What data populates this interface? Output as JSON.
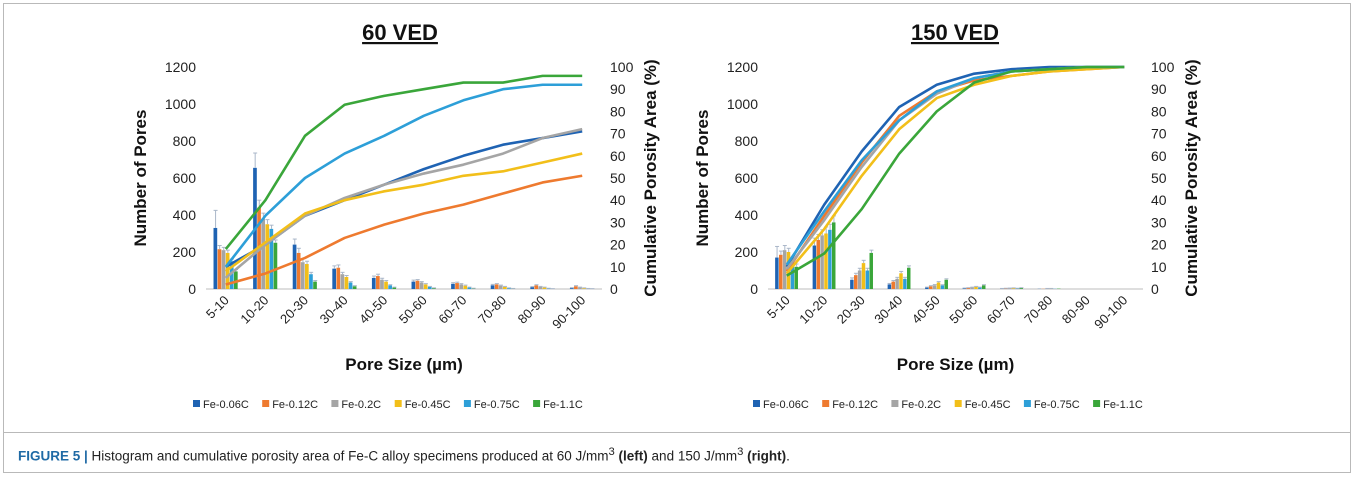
{
  "chart_data": [
    {
      "type": "bar",
      "title": "60 VED",
      "xlabel": "Pore Size (µm)",
      "ylabel": "Number of Pores",
      "y2label": "Cumulative Porosity Area (%)",
      "ylim": [
        0,
        1200
      ],
      "yticks": [
        0,
        200,
        400,
        600,
        800,
        1000,
        1200
      ],
      "y2lim": [
        0,
        100
      ],
      "y2ticks": [
        0,
        10,
        20,
        30,
        40,
        50,
        60,
        70,
        80,
        90,
        100
      ],
      "categories": [
        "5-10",
        "10-20",
        "20-30",
        "30-40",
        "40-50",
        "50-60",
        "60-70",
        "70-80",
        "80-90",
        "90-100"
      ],
      "legend_position": "bottom",
      "series": [
        {
          "name": "Fe-0.06C",
          "color": "#1f63b3",
          "values": [
            330,
            655,
            240,
            110,
            60,
            40,
            28,
            20,
            10,
            5
          ],
          "errors": [
            95,
            80,
            30,
            15,
            10,
            8,
            6,
            5,
            3,
            2
          ],
          "cumulative": [
            10,
            20,
            33,
            40,
            47,
            54,
            60,
            65,
            68,
            71
          ]
        },
        {
          "name": "Fe-0.12C",
          "color": "#ee7a2f",
          "values": [
            215,
            440,
            195,
            115,
            70,
            45,
            32,
            25,
            20,
            15
          ],
          "errors": [
            20,
            40,
            25,
            15,
            10,
            6,
            5,
            4,
            3,
            3
          ],
          "cumulative": [
            2,
            7,
            14,
            23,
            29,
            34,
            38,
            43,
            48,
            51
          ]
        },
        {
          "name": "Fe-0.2C",
          "color": "#a5a5a5",
          "values": [
            210,
            380,
            145,
            80,
            50,
            35,
            25,
            18,
            12,
            8
          ],
          "errors": [
            15,
            30,
            20,
            10,
            8,
            5,
            4,
            3,
            2,
            2
          ],
          "cumulative": [
            5,
            20,
            33,
            41,
            47,
            52,
            56,
            61,
            68,
            72
          ]
        },
        {
          "name": "Fe-0.45C",
          "color": "#f2bf1a",
          "values": [
            195,
            350,
            135,
            65,
            40,
            25,
            18,
            12,
            8,
            5
          ],
          "errors": [
            15,
            25,
            15,
            8,
            6,
            4,
            3,
            2,
            2,
            1
          ],
          "cumulative": [
            8,
            21,
            34,
            40,
            44,
            47,
            51,
            53,
            57,
            61
          ]
        },
        {
          "name": "Fe-0.75C",
          "color": "#2d9fd8",
          "values": [
            150,
            325,
            80,
            35,
            20,
            12,
            8,
            5,
            3,
            2
          ],
          "errors": [
            12,
            20,
            10,
            5,
            3,
            2,
            2,
            1,
            1,
            1
          ],
          "cumulative": [
            10,
            33,
            50,
            61,
            69,
            78,
            85,
            90,
            92,
            92
          ]
        },
        {
          "name": "Fe-1.1C",
          "color": "#3aa63a",
          "values": [
            95,
            250,
            40,
            15,
            8,
            5,
            3,
            2,
            1,
            1
          ],
          "errors": [
            10,
            15,
            6,
            3,
            2,
            1,
            1,
            1,
            1,
            1
          ],
          "cumulative": [
            18,
            40,
            69,
            83,
            87,
            90,
            93,
            93,
            96,
            96
          ]
        }
      ]
    },
    {
      "type": "bar",
      "title": "150 VED",
      "xlabel": "Pore Size (µm)",
      "ylabel": "Number of Pores",
      "y2label": "Cumulative Porosity Area (%)",
      "ylim": [
        0,
        1200
      ],
      "yticks": [
        0,
        200,
        400,
        600,
        800,
        1000,
        1200
      ],
      "y2lim": [
        0,
        100
      ],
      "y2ticks": [
        0,
        10,
        20,
        30,
        40,
        50,
        60,
        70,
        80,
        90,
        100
      ],
      "categories": [
        "5-10",
        "10-20",
        "20-30",
        "30-40",
        "40-50",
        "50-60",
        "60-70",
        "70-80",
        "80-90",
        "90-100"
      ],
      "legend_position": "bottom",
      "series": [
        {
          "name": "Fe-0.06C",
          "color": "#1f63b3",
          "values": [
            170,
            235,
            50,
            25,
            8,
            4,
            2,
            1,
            0,
            0
          ],
          "errors": [
            60,
            40,
            10,
            5,
            2,
            1,
            1,
            0,
            0,
            0
          ],
          "cumulative": [
            10,
            38,
            62,
            82,
            92,
            97,
            99,
            100,
            100,
            100
          ]
        },
        {
          "name": "Fe-0.12C",
          "color": "#ee7a2f",
          "values": [
            185,
            265,
            75,
            40,
            15,
            6,
            3,
            1,
            0,
            0
          ],
          "errors": [
            20,
            30,
            10,
            6,
            3,
            1,
            1,
            0,
            0,
            0
          ],
          "cumulative": [
            8,
            33,
            57,
            78,
            89,
            94,
            96,
            98,
            99,
            100
          ]
        },
        {
          "name": "Fe-0.2C",
          "color": "#a5a5a5",
          "values": [
            210,
            290,
            100,
            55,
            20,
            8,
            4,
            2,
            0,
            0
          ],
          "errors": [
            25,
            30,
            12,
            8,
            4,
            2,
            1,
            1,
            0,
            0
          ],
          "cumulative": [
            9,
            31,
            55,
            76,
            88,
            95,
            98,
            99,
            100,
            100
          ]
        },
        {
          "name": "Fe-0.45C",
          "color": "#f2bf1a",
          "values": [
            200,
            300,
            140,
            85,
            35,
            12,
            5,
            2,
            0,
            0
          ],
          "errors": [
            20,
            35,
            15,
            10,
            5,
            2,
            1,
            1,
            0,
            0
          ],
          "cumulative": [
            7,
            27,
            51,
            72,
            86,
            92,
            96,
            98,
            99,
            100
          ]
        },
        {
          "name": "Fe-0.75C",
          "color": "#2d9fd8",
          "values": [
            150,
            320,
            100,
            55,
            20,
            8,
            3,
            1,
            0,
            0
          ],
          "errors": [
            15,
            30,
            12,
            8,
            3,
            2,
            1,
            0,
            0,
            0
          ],
          "cumulative": [
            11,
            35,
            58,
            76,
            89,
            95,
            98,
            99,
            100,
            100
          ]
        },
        {
          "name": "Fe-1.1C",
          "color": "#3aa63a",
          "values": [
            120,
            360,
            195,
            115,
            50,
            20,
            6,
            2,
            0,
            0
          ],
          "errors": [
            15,
            35,
            15,
            10,
            5,
            3,
            1,
            0,
            0,
            0
          ],
          "cumulative": [
            6,
            16,
            36,
            61,
            80,
            93,
            98,
            99,
            100,
            100
          ]
        }
      ]
    }
  ],
  "caption": {
    "label": "FIGURE 5 |",
    "text_before": " Histogram and cumulative porosity area of Fe-C alloy specimens produced at 60 J/mm",
    "sup1": "3",
    "bold1": " (left)",
    "text_middle": " and 150 J/mm",
    "sup2": "3",
    "bold2": " (right)",
    "text_end": "."
  }
}
